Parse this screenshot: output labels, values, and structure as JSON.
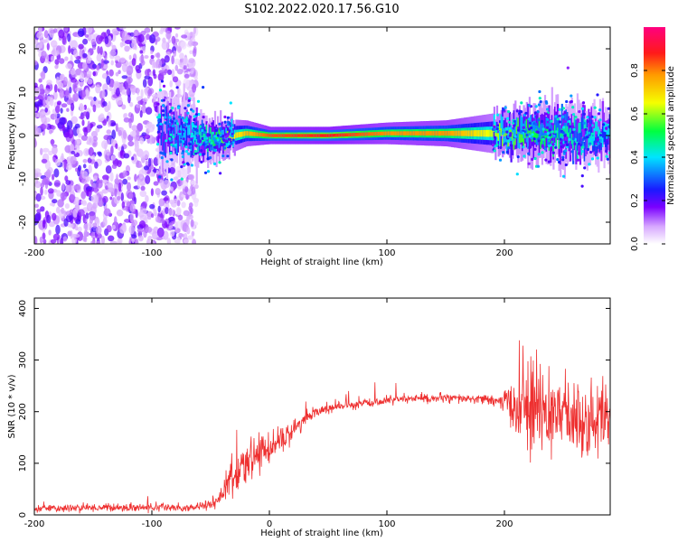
{
  "title": "S102.2022.020.17.56.G10",
  "chart_data": [
    {
      "type": "heatmap",
      "xlabel": "Height of straight line (km)",
      "ylabel": "Frequency (Hz)",
      "xlim": [
        -200,
        290
      ],
      "ylim": [
        -25,
        25
      ],
      "xticks": [
        -200,
        -100,
        0,
        100,
        200
      ],
      "yticks": [
        -20,
        -10,
        0,
        10,
        20
      ],
      "colorbar": {
        "label": "Normalized spectral amplitude",
        "range": [
          0,
          1
        ],
        "ticks": [
          "0.0",
          "0.2",
          "0.4",
          "0.6",
          "0.8"
        ],
        "colormap": "rainbow: white-violet-blue-cyan-green-yellow-orange-red-magenta"
      },
      "ridge": [
        {
          "x": -90,
          "freq": 1.5,
          "width": 8,
          "amp": 0.3
        },
        {
          "x": -50,
          "freq": -1.0,
          "width": 5,
          "amp": 0.5
        },
        {
          "x": -20,
          "freq": 0.5,
          "width": 3,
          "amp": 0.75
        },
        {
          "x": 0,
          "freq": 0.0,
          "width": 2,
          "amp": 0.85
        },
        {
          "x": 50,
          "freq": 0.0,
          "width": 2,
          "amp": 0.9
        },
        {
          "x": 100,
          "freq": 0.5,
          "width": 2.5,
          "amp": 0.8
        },
        {
          "x": 150,
          "freq": 0.5,
          "width": 3,
          "amp": 0.8
        },
        {
          "x": 200,
          "freq": 0.5,
          "width": 5,
          "amp": 0.6
        },
        {
          "x": 240,
          "freq": 0.5,
          "width": 7,
          "amp": 0.5
        },
        {
          "x": 290,
          "freq": 0.0,
          "width": 6,
          "amp": 0.4
        }
      ],
      "noise_region": {
        "x_from": -200,
        "x_to": -70,
        "note_visible": false
      }
    },
    {
      "type": "line",
      "xlabel": "Height of straight line (km)",
      "ylabel": "SNR (10 * v/v)",
      "xlim": [
        -200,
        290
      ],
      "ylim": [
        0,
        420
      ],
      "xticks": [
        -200,
        -100,
        0,
        100,
        200
      ],
      "yticks": [
        0,
        100,
        200,
        300,
        400
      ],
      "color": "#ee3030",
      "series": [
        {
          "x": [
            -200,
            -150,
            -100,
            -60,
            -45,
            -40,
            -35,
            -30,
            -25,
            -20,
            -10,
            0,
            10,
            20,
            30,
            40,
            60,
            80,
            100,
            120,
            150,
            180,
            195,
            205,
            215,
            225,
            235,
            250,
            270,
            290
          ],
          "y": [
            12,
            14,
            14,
            15,
            25,
            45,
            70,
            65,
            80,
            95,
            120,
            130,
            145,
            165,
            185,
            200,
            210,
            215,
            222,
            225,
            226,
            224,
            220,
            215,
            200,
            205,
            195,
            200,
            180,
            190
          ],
          "noise": [
            6,
            7,
            7,
            8,
            12,
            20,
            35,
            30,
            30,
            35,
            30,
            30,
            28,
            20,
            12,
            10,
            8,
            8,
            8,
            8,
            8,
            8,
            10,
            35,
            80,
            90,
            75,
            70,
            65,
            60
          ]
        }
      ]
    }
  ]
}
